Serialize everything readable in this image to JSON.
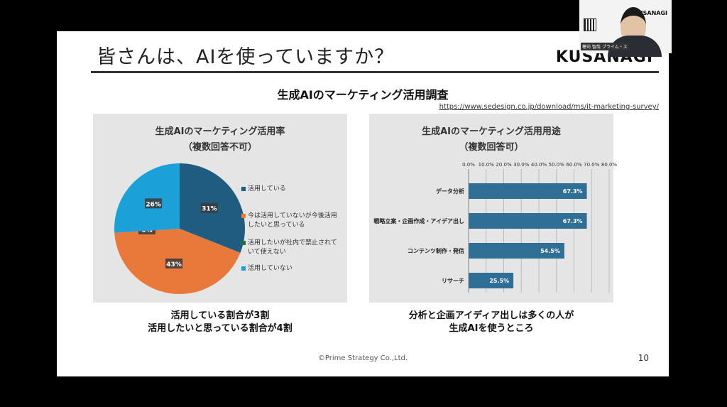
{
  "slide": {
    "title": "皆さんは、AIを使っていますか？",
    "brand": "KUSANAGI",
    "survey_title": "生成AIのマーケティング活用調査",
    "survey_url": "https://www.sedesign.co.jp/download/ms/it-marketing-survey/",
    "footer": "©Prime Strategy Co.,Ltd.",
    "page_number": "10"
  },
  "left_panel": {
    "title_line1": "生成AIのマーケティング活用率",
    "title_line2": "（複数回答不可）",
    "caption_line1": "活用している割合が3割",
    "caption_line2": "活用したいと思っている割合が4割"
  },
  "right_panel": {
    "title_line1": "生成AIのマーケティング活用用途",
    "title_line2": "（複数回答可）",
    "caption_line1": "分析と企画アイディア出しは多くの人が",
    "caption_line2": "生成AIを使うところ"
  },
  "webcam": {
    "name_tag": "穂苅 智哉 プライム・ス",
    "brand_small": "KUSANAGI"
  },
  "chart_data": [
    {
      "type": "pie",
      "title": "生成AIのマーケティング活用率（複数回答不可）",
      "categories": [
        "活用している",
        "今は活用していないが今後活用したいと思っている",
        "活用したいが社内で禁止されていて使えない",
        "活用していない"
      ],
      "values": [
        31,
        43,
        0,
        26
      ],
      "labels": [
        "31%",
        "43%",
        "0%",
        "26%"
      ],
      "colors": [
        "#1f5c80",
        "#e8793a",
        "#2a6b3a",
        "#1ba0d8"
      ],
      "legend_position": "right"
    },
    {
      "type": "bar",
      "orientation": "horizontal",
      "title": "生成AIのマーケティング活用用途（複数回答可）",
      "categories": [
        "データ分析",
        "戦略立案・企画作成・アイデア出し",
        "コンテンツ制作・発信",
        "リサーチ"
      ],
      "values": [
        67.3,
        67.3,
        54.5,
        25.5
      ],
      "labels": [
        "67.3%",
        "67.3%",
        "54.5%",
        "25.5%"
      ],
      "xlim": [
        0,
        80
      ],
      "ticks": [
        "0.0%",
        "10.0%",
        "20.0%",
        "30.0%",
        "40.0%",
        "50.0%",
        "60.0%",
        "70.0%",
        "80.0%"
      ],
      "color": "#2f6f95",
      "grid": true
    }
  ]
}
